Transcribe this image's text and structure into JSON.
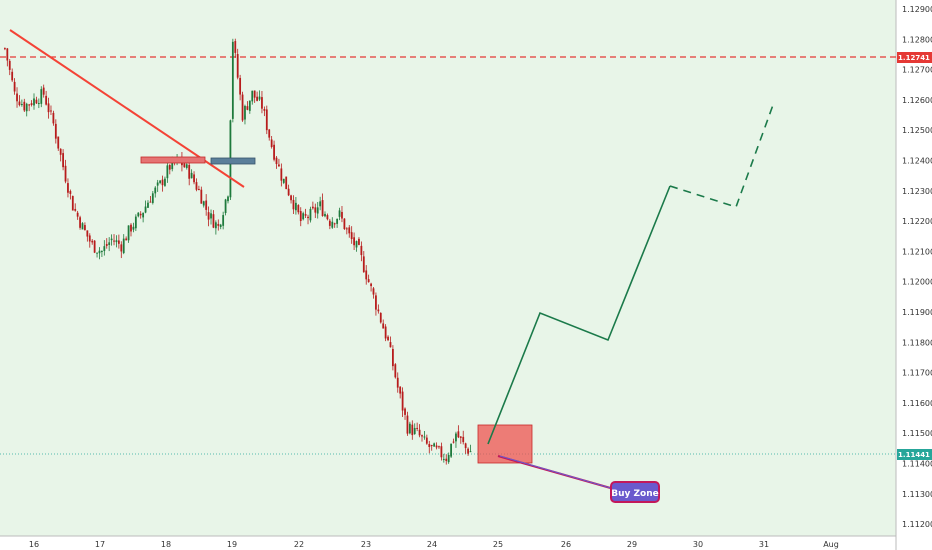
{
  "chart_data": {
    "type": "candlestick",
    "instrument_note": "",
    "y_axis": {
      "ticks": [
        "1.12900",
        "1.12800",
        "1.12700",
        "1.12600",
        "1.12500",
        "1.12400",
        "1.12300",
        "1.12200",
        "1.12100",
        "1.12000",
        "1.11900",
        "1.11800",
        "1.11700",
        "1.11600",
        "1.11500",
        "1.11400",
        "1.11300",
        "1.11200"
      ],
      "range": [
        1.11175,
        1.12935
      ]
    },
    "x_axis": {
      "ticks": [
        "16",
        "17",
        "18",
        "19",
        "22",
        "23",
        "24",
        "25",
        "26",
        "29",
        "30",
        "31",
        "Aug"
      ]
    },
    "price_tags": [
      {
        "value": "1.12741",
        "color": "#e53935",
        "line": "dashed"
      },
      {
        "value": "1.11441",
        "color": "#26a69a",
        "line": "dotted"
      }
    ],
    "candles_anchor_close": [
      [
        0,
        1.1277
      ],
      [
        2,
        1.1262
      ],
      [
        4,
        1.1258
      ],
      [
        6,
        1.126
      ],
      [
        8,
        1.1262
      ],
      [
        10,
        1.1252
      ],
      [
        12,
        1.1238
      ],
      [
        14,
        1.1225
      ],
      [
        16,
        1.1218
      ],
      [
        18,
        1.1212
      ],
      [
        20,
        1.121
      ],
      [
        22,
        1.1214
      ],
      [
        24,
        1.1212
      ],
      [
        26,
        1.1218
      ],
      [
        28,
        1.1222
      ],
      [
        30,
        1.1228
      ],
      [
        32,
        1.1232
      ],
      [
        34,
        1.1238
      ],
      [
        36,
        1.124
      ],
      [
        38,
        1.1236
      ],
      [
        40,
        1.123
      ],
      [
        42,
        1.1222
      ],
      [
        44,
        1.1218
      ],
      [
        46,
        1.123
      ],
      [
        47,
        1.128
      ],
      [
        49,
        1.1255
      ],
      [
        51,
        1.1262
      ],
      [
        53,
        1.1258
      ],
      [
        55,
        1.1245
      ],
      [
        57,
        1.1235
      ],
      [
        59,
        1.1228
      ],
      [
        61,
        1.122
      ],
      [
        63,
        1.1222
      ],
      [
        65,
        1.1225
      ],
      [
        67,
        1.122
      ],
      [
        69,
        1.1222
      ],
      [
        71,
        1.1215
      ],
      [
        73,
        1.121
      ],
      [
        75,
        1.12
      ],
      [
        77,
        1.119
      ],
      [
        79,
        1.118
      ],
      [
        81,
        1.1165
      ],
      [
        83,
        1.1152
      ],
      [
        85,
        1.115
      ],
      [
        87,
        1.1146
      ],
      [
        89,
        1.1144
      ],
      [
        91,
        1.1142
      ],
      [
        93,
        1.115
      ],
      [
        95,
        1.1145
      ],
      [
        96,
        1.1144
      ]
    ],
    "annotations": {
      "trendline_color": "#f44336",
      "zone_upper_box_color": "#e57373",
      "zone_lower_box_color": "#5b7f9a",
      "buy_zone_box_color": "#ef5350",
      "projection_color": "#1b7a4a",
      "callout_label": "Buy Zone",
      "callout_fill": "#6a5acd",
      "callout_border": "#c2185b"
    }
  }
}
